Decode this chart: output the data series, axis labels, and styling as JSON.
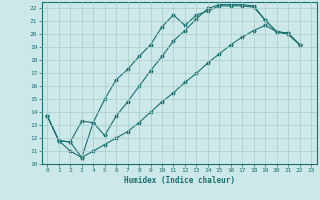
{
  "xlabel": "Humidex (Indice chaleur)",
  "xlim": [
    -0.5,
    23.5
  ],
  "ylim": [
    10,
    22.5
  ],
  "yticks": [
    10,
    11,
    12,
    13,
    14,
    15,
    16,
    17,
    18,
    19,
    20,
    21,
    22
  ],
  "xticks": [
    0,
    1,
    2,
    3,
    4,
    5,
    6,
    7,
    8,
    9,
    10,
    11,
    12,
    13,
    14,
    15,
    16,
    17,
    18,
    19,
    20,
    21,
    22,
    23
  ],
  "background_color": "#cce8e8",
  "grid_color": "#aacccc",
  "line_color": "#1a7070",
  "line1_x": [
    0,
    1,
    2,
    3,
    4,
    5,
    6,
    7,
    8,
    9,
    10,
    11,
    12,
    13,
    14,
    15,
    16,
    17,
    18,
    19,
    20,
    21,
    22
  ],
  "line1_y": [
    13.7,
    11.8,
    11.7,
    13.3,
    13.2,
    15.0,
    16.5,
    17.3,
    18.3,
    19.2,
    20.6,
    21.5,
    20.7,
    21.5,
    21.8,
    22.2,
    22.2,
    22.2,
    22.1,
    21.1,
    20.2,
    20.1,
    19.2
  ],
  "line2_x": [
    0,
    1,
    2,
    3,
    4,
    5,
    6,
    7,
    8,
    9,
    10,
    11,
    12,
    13,
    14,
    15,
    16,
    17,
    18,
    19,
    20,
    21,
    22
  ],
  "line2_y": [
    13.7,
    11.8,
    11.7,
    10.5,
    13.2,
    12.2,
    13.7,
    14.8,
    16.0,
    17.2,
    18.3,
    19.5,
    20.3,
    21.2,
    22.0,
    22.3,
    22.3,
    22.3,
    22.2,
    21.1,
    20.2,
    20.1,
    19.2
  ],
  "line3_x": [
    0,
    1,
    2,
    3,
    4,
    5,
    6,
    7,
    8,
    9,
    10,
    11,
    12,
    13,
    14,
    15,
    16,
    17,
    18,
    19,
    20,
    21,
    22
  ],
  "line3_y": [
    13.7,
    11.8,
    11.0,
    10.5,
    11.0,
    11.5,
    12.0,
    12.5,
    13.2,
    14.0,
    14.8,
    15.5,
    16.3,
    17.0,
    17.8,
    18.5,
    19.2,
    19.8,
    20.3,
    20.7,
    20.2,
    20.0,
    19.2
  ]
}
